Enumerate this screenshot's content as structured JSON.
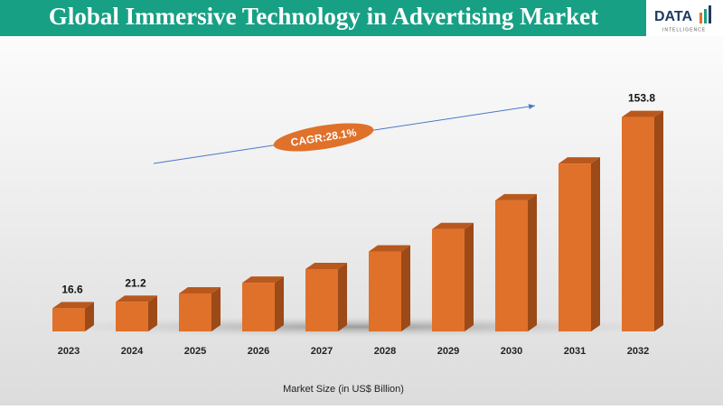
{
  "chart_data": {
    "type": "bar3d",
    "title": "Global Immersive Technology in Advertising Market",
    "x_label": "Market Size (in US$ Billion)",
    "annotation": "CAGR:28.1%",
    "logo": {
      "name": "DATA",
      "tagline": "INTELLIGENCE"
    },
    "categories": [
      "2023",
      "2024",
      "2025",
      "2026",
      "2027",
      "2028",
      "2029",
      "2030",
      "2031",
      "2032"
    ],
    "values": [
      16.6,
      21.2,
      27.2,
      34.9,
      44.7,
      57.3,
      73.4,
      94.0,
      120.4,
      153.8
    ],
    "value_labels": [
      "16.6",
      "21.2",
      null,
      null,
      null,
      null,
      null,
      null,
      null,
      "153.8"
    ],
    "color": "#e0712a",
    "ylim": [
      0,
      160
    ]
  }
}
